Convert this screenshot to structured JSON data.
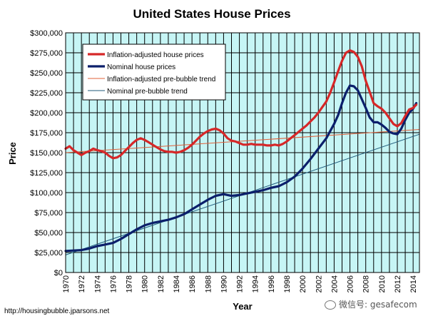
{
  "source_text": "http://housingbubble.jparsons.net",
  "watermark_text": "微信号: gesafecom",
  "colors": {
    "plot_bg": "#c6f5f5",
    "grid": "#000000",
    "inflation_adjusted": "#d62728",
    "nominal": "#0b1f6b",
    "inflation_trend": "#e0603a",
    "nominal_trend": "#1f5a7a"
  },
  "chart_data": {
    "type": "line",
    "title": "United States House Prices",
    "xlabel": "Year",
    "ylabel": "Price",
    "xlim": [
      1970,
      2014.8
    ],
    "ylim": [
      0,
      300000
    ],
    "grid": true,
    "legend_position": "top-left",
    "x_ticks": [
      1970,
      1972,
      1974,
      1976,
      1978,
      1980,
      1982,
      1984,
      1986,
      1988,
      1990,
      1992,
      1994,
      1996,
      1998,
      2000,
      2002,
      2004,
      2006,
      2008,
      2010,
      2012,
      2014
    ],
    "y_ticks": [
      {
        "value": 0,
        "label": "$0"
      },
      {
        "value": 25000,
        "label": "$25,000"
      },
      {
        "value": 50000,
        "label": "$50,000"
      },
      {
        "value": 75000,
        "label": "$75,000"
      },
      {
        "value": 100000,
        "label": "$100,000"
      },
      {
        "value": 125000,
        "label": "$125,000"
      },
      {
        "value": 150000,
        "label": "$150,000"
      },
      {
        "value": 175000,
        "label": "$175,000"
      },
      {
        "value": 200000,
        "label": "$200,000"
      },
      {
        "value": 225000,
        "label": "$225,000"
      },
      {
        "value": 250000,
        "label": "$250,000"
      },
      {
        "value": 275000,
        "label": "$275,000"
      },
      {
        "value": 300000,
        "label": "$300,000"
      }
    ],
    "series": [
      {
        "name": "Inflation-adjusted house prices",
        "style": "thick",
        "points": [
          [
            1970,
            155000
          ],
          [
            1970.5,
            158000
          ],
          [
            1971,
            153000
          ],
          [
            1971.5,
            150000
          ],
          [
            1972,
            147000
          ],
          [
            1972.5,
            150000
          ],
          [
            1973,
            152000
          ],
          [
            1973.5,
            155000
          ],
          [
            1974,
            153000
          ],
          [
            1974.5,
            152000
          ],
          [
            1975,
            150000
          ],
          [
            1975.5,
            146000
          ],
          [
            1976,
            143000
          ],
          [
            1976.5,
            144000
          ],
          [
            1977,
            147000
          ],
          [
            1977.5,
            152000
          ],
          [
            1978,
            157000
          ],
          [
            1978.5,
            162000
          ],
          [
            1979,
            166000
          ],
          [
            1979.5,
            168000
          ],
          [
            1980,
            166000
          ],
          [
            1980.5,
            163000
          ],
          [
            1981,
            160000
          ],
          [
            1981.5,
            157000
          ],
          [
            1982,
            154000
          ],
          [
            1982.5,
            152000
          ],
          [
            1983,
            151000
          ],
          [
            1983.5,
            151000
          ],
          [
            1984,
            150000
          ],
          [
            1984.5,
            151000
          ],
          [
            1985,
            153000
          ],
          [
            1985.5,
            156000
          ],
          [
            1986,
            160000
          ],
          [
            1986.5,
            165000
          ],
          [
            1987,
            170000
          ],
          [
            1987.5,
            174000
          ],
          [
            1988,
            177000
          ],
          [
            1988.5,
            179000
          ],
          [
            1989,
            180000
          ],
          [
            1989.5,
            178000
          ],
          [
            1990,
            174000
          ],
          [
            1990.5,
            168000
          ],
          [
            1991,
            165000
          ],
          [
            1991.5,
            164000
          ],
          [
            1992,
            162000
          ],
          [
            1992.5,
            160000
          ],
          [
            1993,
            160000
          ],
          [
            1993.5,
            161000
          ],
          [
            1994,
            160000
          ],
          [
            1994.5,
            160000
          ],
          [
            1995,
            160000
          ],
          [
            1995.5,
            159000
          ],
          [
            1996,
            159000
          ],
          [
            1996.5,
            160000
          ],
          [
            1997,
            159000
          ],
          [
            1997.5,
            161000
          ],
          [
            1998,
            164000
          ],
          [
            1998.5,
            168000
          ],
          [
            1999,
            172000
          ],
          [
            1999.5,
            176000
          ],
          [
            2000,
            180000
          ],
          [
            2000.5,
            184000
          ],
          [
            2001,
            189000
          ],
          [
            2001.5,
            194000
          ],
          [
            2002,
            200000
          ],
          [
            2002.5,
            207000
          ],
          [
            2003,
            214000
          ],
          [
            2003.5,
            225000
          ],
          [
            2004,
            238000
          ],
          [
            2004.5,
            252000
          ],
          [
            2005,
            265000
          ],
          [
            2005.5,
            275000
          ],
          [
            2006,
            278000
          ],
          [
            2006.5,
            276000
          ],
          [
            2007,
            270000
          ],
          [
            2007.5,
            258000
          ],
          [
            2008,
            240000
          ],
          [
            2008.5,
            226000
          ],
          [
            2009,
            212000
          ],
          [
            2009.5,
            208000
          ],
          [
            2010,
            205000
          ],
          [
            2010.5,
            200000
          ],
          [
            2011,
            193000
          ],
          [
            2011.5,
            186000
          ],
          [
            2012,
            183000
          ],
          [
            2012.5,
            187000
          ],
          [
            2013,
            196000
          ],
          [
            2013.5,
            204000
          ],
          [
            2014,
            206000
          ],
          [
            2014.4,
            210000
          ]
        ]
      },
      {
        "name": "Nominal house prices",
        "style": "thick",
        "points": [
          [
            1970,
            27000
          ],
          [
            1971,
            27500
          ],
          [
            1972,
            28000
          ],
          [
            1973,
            30000
          ],
          [
            1974,
            33000
          ],
          [
            1975,
            35000
          ],
          [
            1976,
            37000
          ],
          [
            1977,
            42000
          ],
          [
            1978,
            48000
          ],
          [
            1979,
            54000
          ],
          [
            1980,
            59000
          ],
          [
            1981,
            62000
          ],
          [
            1982,
            64000
          ],
          [
            1983,
            66000
          ],
          [
            1984,
            69000
          ],
          [
            1985,
            73000
          ],
          [
            1986,
            79000
          ],
          [
            1987,
            85000
          ],
          [
            1988,
            91000
          ],
          [
            1989,
            96000
          ],
          [
            1990,
            98000
          ],
          [
            1990.5,
            97000
          ],
          [
            1991,
            96000
          ],
          [
            1992,
            97000
          ],
          [
            1993,
            99000
          ],
          [
            1994,
            101000
          ],
          [
            1995,
            103000
          ],
          [
            1996,
            106000
          ],
          [
            1997,
            108000
          ],
          [
            1998,
            113000
          ],
          [
            1999,
            120000
          ],
          [
            2000,
            130000
          ],
          [
            2001,
            142000
          ],
          [
            2002,
            155000
          ],
          [
            2003,
            168000
          ],
          [
            2004,
            186000
          ],
          [
            2004.5,
            197000
          ],
          [
            2005,
            212000
          ],
          [
            2005.5,
            225000
          ],
          [
            2006,
            234000
          ],
          [
            2006.5,
            233000
          ],
          [
            2007,
            228000
          ],
          [
            2007.5,
            217000
          ],
          [
            2008,
            206000
          ],
          [
            2008.5,
            194000
          ],
          [
            2009,
            188000
          ],
          [
            2009.5,
            188000
          ],
          [
            2010,
            185000
          ],
          [
            2010.5,
            181000
          ],
          [
            2011,
            176000
          ],
          [
            2011.5,
            174000
          ],
          [
            2012,
            173000
          ],
          [
            2012.5,
            180000
          ],
          [
            2013,
            191000
          ],
          [
            2013.5,
            200000
          ],
          [
            2014,
            205000
          ],
          [
            2014.4,
            212000
          ]
        ]
      },
      {
        "name": "Inflation-adjusted pre-bubble trend",
        "style": "thin",
        "points": [
          [
            1970,
            150000
          ],
          [
            2014.8,
            179000
          ]
        ]
      },
      {
        "name": "Nominal pre-bubble trend",
        "style": "thin",
        "points": [
          [
            1970,
            22000
          ],
          [
            2014.8,
            173000
          ]
        ]
      }
    ]
  }
}
